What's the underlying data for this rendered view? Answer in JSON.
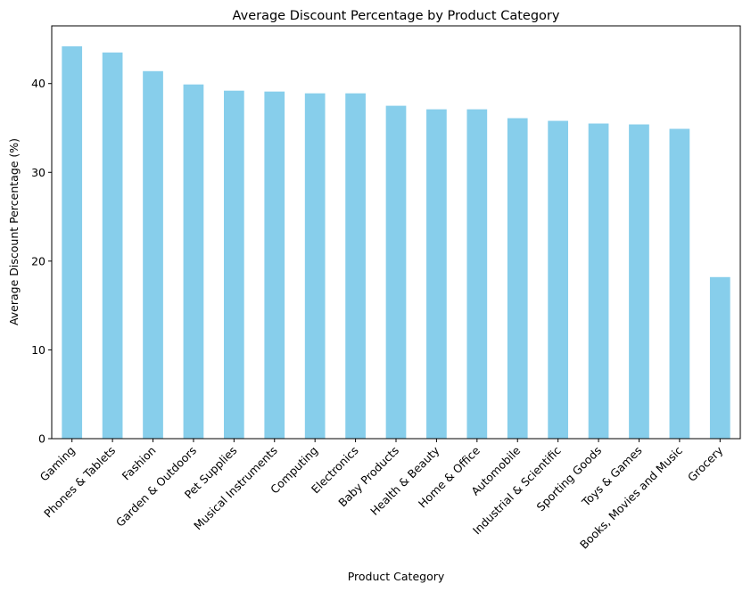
{
  "chart_data": {
    "type": "bar",
    "title": "Average Discount Percentage by Product Category",
    "xlabel": "Product Category",
    "ylabel": "Average Discount Percentage (%)",
    "ylim": [
      0,
      46.5
    ],
    "yticks": [
      0,
      10,
      20,
      30,
      40
    ],
    "grid": false,
    "bar_color": "#87ceeb",
    "categories": [
      "Gaming",
      "Phones & Tablets",
      "Fashion",
      "Garden & Outdoors",
      "Pet Supplies",
      "Musical Instruments",
      "Computing",
      "Electronics",
      "Baby Products",
      "Health & Beauty",
      "Home & Office",
      "Automobile",
      "Industrial & Scientific",
      "Sporting Goods",
      "Toys & Games",
      "Books, Movies and Music",
      "Grocery"
    ],
    "values": [
      44.2,
      43.5,
      41.4,
      39.9,
      39.2,
      39.1,
      38.9,
      38.9,
      37.5,
      37.1,
      37.1,
      36.1,
      35.8,
      35.5,
      35.4,
      34.9,
      18.2
    ]
  }
}
